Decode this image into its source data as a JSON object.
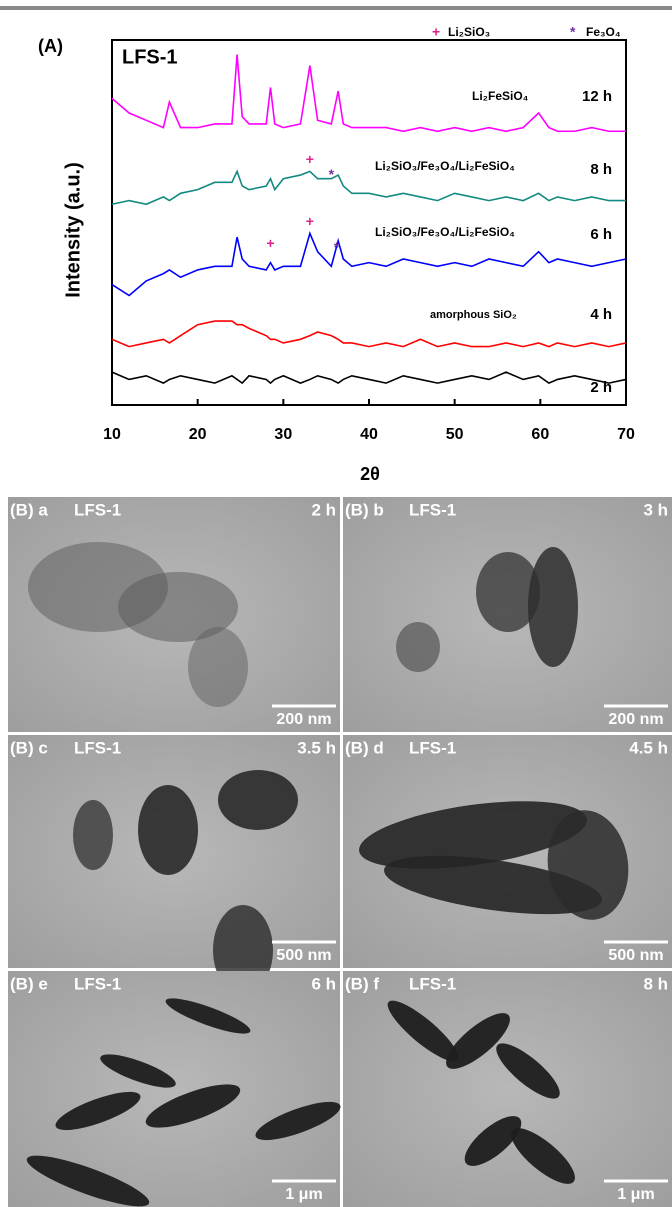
{
  "chart_data": {
    "type": "line",
    "panel_label": "(A)",
    "title": "LFS-1",
    "x_label": "2θ",
    "y_label": "Intensity (a.u.)",
    "xlim": [
      10,
      70
    ],
    "xticks": [
      10,
      20,
      30,
      40,
      50,
      60,
      70
    ],
    "ylim": [
      0,
      100
    ],
    "x": [
      10,
      12,
      14,
      16,
      16.7,
      18,
      20,
      22,
      24,
      24.6,
      25.2,
      26,
      28,
      28.5,
      29,
      30,
      32,
      33.1,
      34,
      35.6,
      36.4,
      37,
      38,
      40,
      42,
      44,
      46,
      48,
      50,
      52,
      54,
      56,
      58,
      59.8,
      61,
      62,
      64,
      66,
      68,
      70
    ],
    "series": [
      {
        "name": "2 h",
        "color": "#000000",
        "values": [
          9,
          7,
          8,
          6,
          7,
          8,
          7,
          6,
          8,
          7,
          6,
          8,
          7,
          6,
          7,
          8,
          6,
          7,
          8,
          7,
          6,
          7,
          8,
          7,
          6,
          8,
          7,
          6,
          7,
          8,
          7,
          9,
          7,
          8,
          6,
          7,
          8,
          7,
          6,
          7
        ]
      },
      {
        "name": "4 h",
        "color": "#ff0000",
        "values": [
          18,
          16,
          17,
          18,
          17,
          19,
          22,
          23,
          23,
          22,
          22,
          21,
          19,
          18,
          18,
          17,
          18,
          19,
          20,
          19,
          18,
          17,
          17,
          16,
          17,
          16,
          18,
          16,
          17,
          16,
          16,
          17,
          16,
          17,
          16,
          17,
          16,
          17,
          16,
          17
        ]
      },
      {
        "name": "6 h",
        "color": "#0000ff",
        "values": [
          33,
          30,
          34,
          36,
          37,
          35,
          37,
          38,
          38,
          46,
          40,
          38,
          37,
          39,
          37,
          38,
          38,
          47,
          42,
          38,
          45,
          40,
          38,
          39,
          38,
          40,
          39,
          38,
          39,
          38,
          40,
          39,
          38,
          42,
          39,
          40,
          39,
          38,
          39,
          40
        ]
      },
      {
        "name": "8 h",
        "color": "#138a80",
        "values": [
          55,
          56,
          55,
          57,
          56,
          58,
          59,
          61,
          61,
          64,
          60,
          59,
          60,
          62,
          59,
          62,
          63,
          64,
          62,
          62,
          63,
          60,
          58,
          58,
          57,
          58,
          57,
          56,
          58,
          57,
          56,
          57,
          56,
          58,
          56,
          57,
          56,
          57,
          56,
          56
        ]
      },
      {
        "name": "12 h",
        "color": "#ff00ff",
        "values": [
          84,
          80,
          78,
          76,
          83,
          76,
          76,
          77,
          77,
          96,
          79,
          77,
          77,
          87,
          77,
          76,
          77,
          93,
          78,
          77,
          86,
          77,
          76,
          76,
          76,
          75,
          76,
          75,
          76,
          75,
          76,
          75,
          76,
          80,
          76,
          75,
          75,
          76,
          75,
          75
        ]
      }
    ],
    "annotations": [
      "amorphous SiO₂",
      "Li₂SiO₃/Fe₃O₄/Li₂FeSiO₄",
      "Li₂SiO₃/Fe₃O₄/Li₂FeSiO₄",
      "Li₂FeSiO₄"
    ],
    "legend": [
      {
        "symbol": "+",
        "label": "Li₂SiO₃",
        "color": "#e0208a"
      },
      {
        "symbol": "*",
        "label": "Fe₃O₄",
        "color": "#7030a0"
      }
    ],
    "markers": [
      {
        "symbol": "+",
        "x": 28.5,
        "y": 44,
        "color": "#e0208a"
      },
      {
        "symbol": "+",
        "x": 33.1,
        "y": 50,
        "color": "#e0208a"
      },
      {
        "symbol": "*",
        "x": 36.2,
        "y": 43,
        "color": "#7030a0"
      },
      {
        "symbol": "+",
        "x": 33.1,
        "y": 67,
        "color": "#e0208a"
      },
      {
        "symbol": "*",
        "x": 35.6,
        "y": 63,
        "color": "#7030a0"
      }
    ]
  },
  "tem_panels": [
    {
      "label": "(B) a",
      "sample": "LFS-1",
      "time": "2 h",
      "scale_bar": "200 nm"
    },
    {
      "label": "(B) b",
      "sample": "LFS-1",
      "time": "3 h",
      "scale_bar": "200 nm"
    },
    {
      "label": "(B) c",
      "sample": "LFS-1",
      "time": "3.5 h",
      "scale_bar": "500 nm"
    },
    {
      "label": "(B) d",
      "sample": "LFS-1",
      "time": "4.5 h",
      "scale_bar": "500 nm"
    },
    {
      "label": "(B) e",
      "sample": "LFS-1",
      "time": "6 h",
      "scale_bar": "1 μm"
    },
    {
      "label": "(B) f",
      "sample": "LFS-1",
      "time": "8 h",
      "scale_bar": "1 μm"
    }
  ]
}
